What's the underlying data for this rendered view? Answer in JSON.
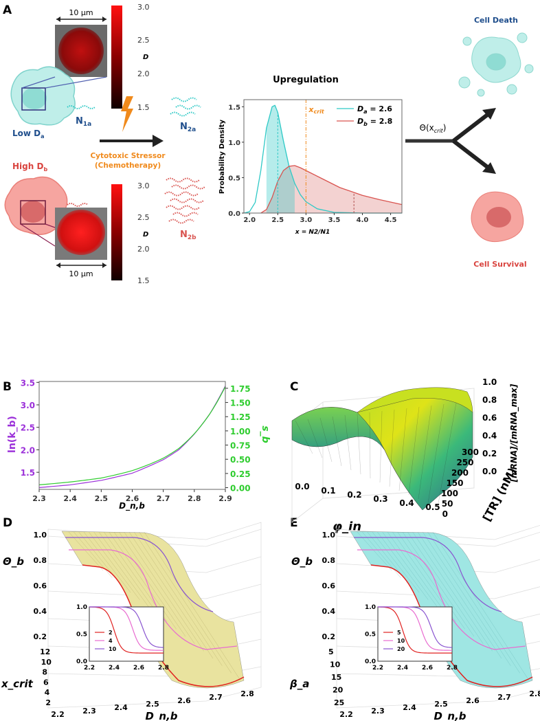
{
  "panels": {
    "a": "A",
    "b": "B",
    "c": "C",
    "d": "D",
    "e": "E"
  },
  "panel_a": {
    "scale_top": "10 μm",
    "scale_bottom": "10 μm",
    "colorbar_ticks": [
      "3.0",
      "2.5",
      "2.0",
      "1.5"
    ],
    "colorbar_label": "D",
    "low": "Low D",
    "low_sub": "a",
    "high": "High D",
    "high_sub": "b",
    "n1a": "N",
    "n1a_sub": "1a",
    "n1b": "N",
    "n1b_sub": "1b",
    "n2a": "N",
    "n2a_sub": "2a",
    "n2b": "N",
    "n2b_sub": "2b",
    "stressor1": "Cytotoxic Stressor",
    "stressor2": "(Chemotherapy)",
    "theta": "Θ(x",
    "theta_sub": "crit",
    "theta_end": ")",
    "cell_death": "Cell Death",
    "cell_survival": "Cell Survival"
  },
  "colors": {
    "cyan": "#2ec9c6",
    "red": "#d9534f",
    "orange": "#f08a1c",
    "purple": "#9b30d9",
    "green": "#2ecc2e",
    "navy": "#1f4e8c",
    "cellred": "#d9443f"
  },
  "chart_data": [
    {
      "id": "A",
      "type": "line",
      "title": "Upregulation",
      "xlabel": "x = N2/N1",
      "ylabel": "Probability Density",
      "xlim": [
        1.9,
        4.7
      ],
      "ylim": [
        0,
        1.6
      ],
      "xticks": [
        "2.0",
        "2.5",
        "3.0",
        "3.5",
        "4.0",
        "4.5"
      ],
      "xtick_values": [
        2.0,
        2.5,
        3.0,
        3.5,
        4.0,
        4.5
      ],
      "yticks": [
        "0.0",
        "0.5",
        "1.0",
        "1.5"
      ],
      "ytick_values": [
        0,
        0.5,
        1.0,
        1.5
      ],
      "xcrit": 3.0,
      "xcrit_label": "x",
      "xcrit_sub": "crit",
      "series": [
        {
          "name": "D_a = 2.6",
          "label": "D",
          "sub": "a",
          "eq": " = 2.6",
          "color": "#2ec9c6",
          "x": [
            1.9,
            2.0,
            2.1,
            2.2,
            2.3,
            2.4,
            2.45,
            2.5,
            2.6,
            2.7,
            2.8,
            2.9,
            3.0,
            3.2,
            3.5,
            4.0,
            4.7
          ],
          "y": [
            0,
            0.02,
            0.15,
            0.6,
            1.2,
            1.5,
            1.52,
            1.42,
            1.02,
            0.66,
            0.42,
            0.26,
            0.16,
            0.06,
            0.01,
            0,
            0
          ]
        },
        {
          "name": "D_b = 2.8",
          "label": "D",
          "sub": "b",
          "eq": " = 2.8",
          "color": "#d9534f",
          "x": [
            2.2,
            2.3,
            2.4,
            2.5,
            2.6,
            2.7,
            2.8,
            2.9,
            3.0,
            3.3,
            3.6,
            4.0,
            4.3,
            4.7
          ],
          "y": [
            0,
            0.05,
            0.22,
            0.45,
            0.6,
            0.66,
            0.67,
            0.64,
            0.6,
            0.48,
            0.36,
            0.25,
            0.19,
            0.12
          ]
        }
      ]
    },
    {
      "id": "B",
      "type": "line",
      "xlabel": "D_n,b",
      "xlim": [
        2.3,
        2.9
      ],
      "xticks": [
        "2.3",
        "2.4",
        "2.5",
        "2.6",
        "2.7",
        "2.8",
        "2.9"
      ],
      "xtick_values": [
        2.3,
        2.4,
        2.5,
        2.6,
        2.7,
        2.8,
        2.9
      ],
      "ylabel_left": "ln(k_b)",
      "ylim_left": [
        1.12,
        3.52
      ],
      "yticks_left": [
        "1.5",
        "2.0",
        "2.5",
        "3.0",
        "3.5"
      ],
      "ytick_values_left": [
        1.5,
        2.0,
        2.5,
        3.0,
        3.5
      ],
      "ylabel_right": "s_b",
      "ylim_right": [
        -0.03,
        1.87
      ],
      "yticks_right": [
        "0.00",
        "0.25",
        "0.50",
        "0.75",
        "1.00",
        "1.25",
        "1.50",
        "1.75"
      ],
      "ytick_values_right": [
        0,
        0.25,
        0.5,
        0.75,
        1.0,
        1.25,
        1.5,
        1.75
      ],
      "series": [
        {
          "name": "ln(k_b)",
          "axis": "left",
          "color": "#9b30d9",
          "x": [
            2.3,
            2.4,
            2.5,
            2.6,
            2.7,
            2.75,
            2.8,
            2.85,
            2.9
          ],
          "y": [
            1.16,
            1.22,
            1.32,
            1.48,
            1.78,
            2.0,
            2.35,
            2.8,
            3.42
          ]
        },
        {
          "name": "s_b",
          "axis": "right",
          "color": "#2ecc2e",
          "x": [
            2.3,
            2.4,
            2.5,
            2.6,
            2.7,
            2.75,
            2.8,
            2.85,
            2.9
          ],
          "y": [
            0.05,
            0.1,
            0.17,
            0.3,
            0.52,
            0.69,
            0.95,
            1.3,
            1.78
          ]
        }
      ]
    },
    {
      "id": "C",
      "type": "surface",
      "xlabel": "φ_in",
      "ylabel": "[TR] (nM)",
      "zlabel": "[mRNA]/[mRNA_max]",
      "xticks": [
        "0.0",
        "0.1",
        "0.2",
        "0.3",
        "0.4",
        "0.5"
      ],
      "yticks": [
        "0",
        "50",
        "100",
        "150",
        "200",
        "250",
        "300"
      ],
      "zticks": [
        "0.0",
        "0.2",
        "0.4",
        "0.6",
        "0.8",
        "1.0"
      ]
    },
    {
      "id": "D",
      "type": "surface",
      "xlabel": "D_n,b",
      "ylabel": "x_crit",
      "zlabel": "Θ_b",
      "xticks": [
        "2.2",
        "2.3",
        "2.4",
        "2.5",
        "2.6",
        "2.7",
        "2.8"
      ],
      "yticks": [
        "12",
        "10",
        "8",
        "6",
        "4",
        "2"
      ],
      "zticks": [
        "1.0",
        "0.8",
        "0.6",
        "0.4",
        "0.2"
      ],
      "inset": {
        "xticks": [
          "2.2",
          "2.4",
          "2.6",
          "2.8"
        ],
        "yticks": [
          "1.0",
          "0.5",
          "0.0"
        ],
        "legend": [
          "2",
          "4",
          "10"
        ],
        "colors": [
          "#e0201f",
          "#e86bd0",
          "#8a55d0"
        ]
      }
    },
    {
      "id": "E",
      "type": "surface",
      "xlabel": "D_n,b",
      "ylabel": "β_a",
      "zlabel": "Θ_b",
      "xticks": [
        "2.2",
        "2.3",
        "2.4",
        "2.5",
        "2.6",
        "2.7",
        "2.8"
      ],
      "yticks": [
        "5",
        "10",
        "15",
        "20",
        "25"
      ],
      "zticks": [
        "1.0",
        "0.8",
        "0.6",
        "0.4",
        "0.2"
      ],
      "inset": {
        "xticks": [
          "2.2",
          "2.4",
          "2.6",
          "2.8"
        ],
        "yticks": [
          "1.0",
          "0.5",
          "0.0"
        ],
        "legend": [
          "5",
          "10",
          "20"
        ],
        "colors": [
          "#e0201f",
          "#e86bd0",
          "#8a55d0"
        ]
      }
    }
  ]
}
